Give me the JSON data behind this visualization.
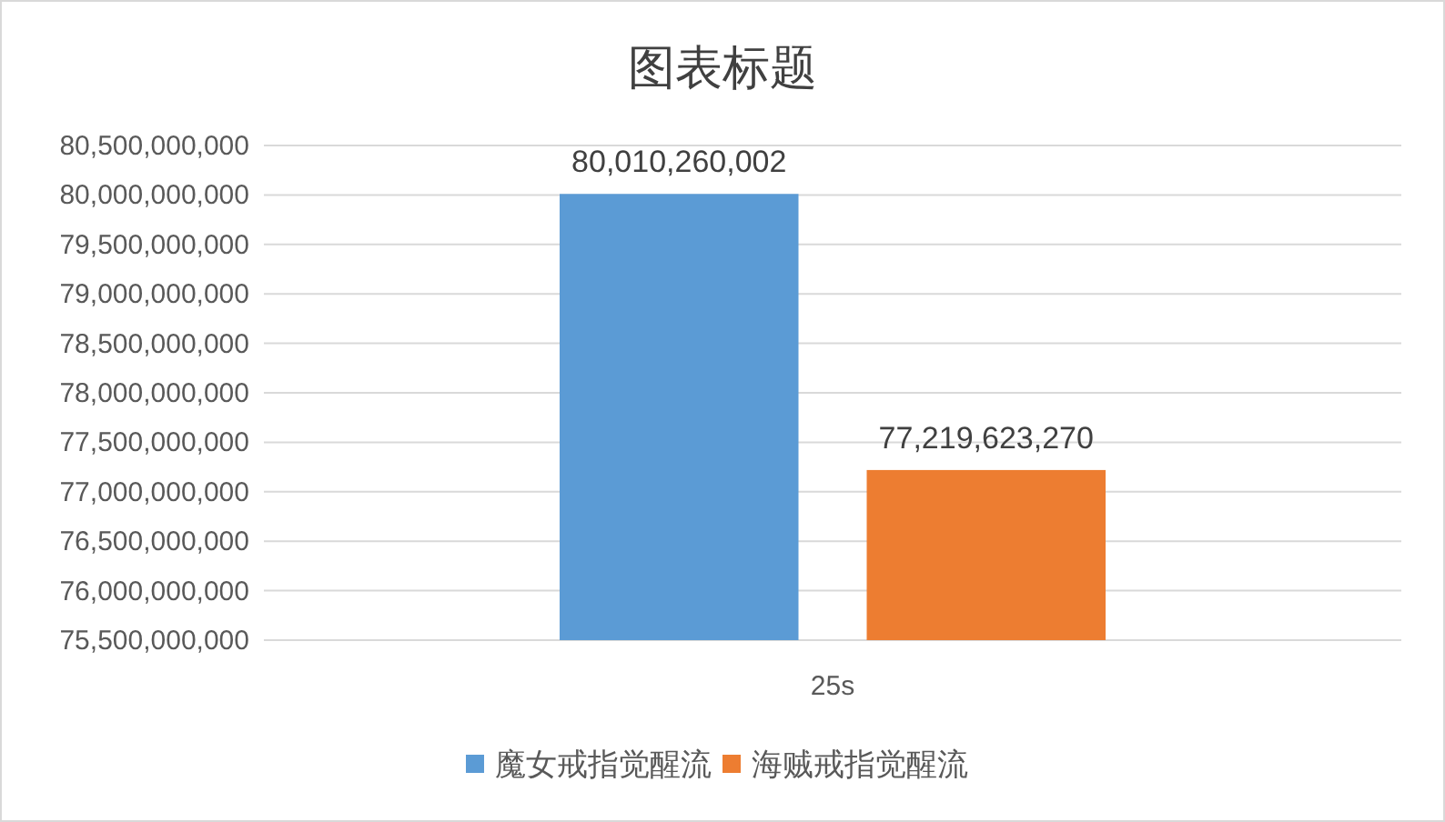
{
  "chart_data": {
    "type": "bar",
    "title": "图表标题",
    "categories": [
      "25s"
    ],
    "series": [
      {
        "name": "魔女戒指觉醒流",
        "color": "#5b9bd5",
        "values": [
          80010260002
        ],
        "value_labels": [
          "80,010,260,002"
        ]
      },
      {
        "name": "海贼戒指觉醒流",
        "color": "#ed7d31",
        "values": [
          77219623270
        ],
        "value_labels": [
          "77,219,623,270"
        ]
      }
    ],
    "ylim": [
      75500000000,
      80500000000
    ],
    "yticks": [
      {
        "value": 75500000000,
        "label": "75,500,000,000"
      },
      {
        "value": 76000000000,
        "label": "76,000,000,000"
      },
      {
        "value": 76500000000,
        "label": "76,500,000,000"
      },
      {
        "value": 77000000000,
        "label": "77,000,000,000"
      },
      {
        "value": 77500000000,
        "label": "77,500,000,000"
      },
      {
        "value": 78000000000,
        "label": "78,000,000,000"
      },
      {
        "value": 78500000000,
        "label": "78,500,000,000"
      },
      {
        "value": 79000000000,
        "label": "79,000,000,000"
      },
      {
        "value": 79500000000,
        "label": "79,500,000,000"
      },
      {
        "value": 80000000000,
        "label": "80,000,000,000"
      },
      {
        "value": 80500000000,
        "label": "80,500,000,000"
      }
    ],
    "grid": "y",
    "legend": "bottom"
  }
}
